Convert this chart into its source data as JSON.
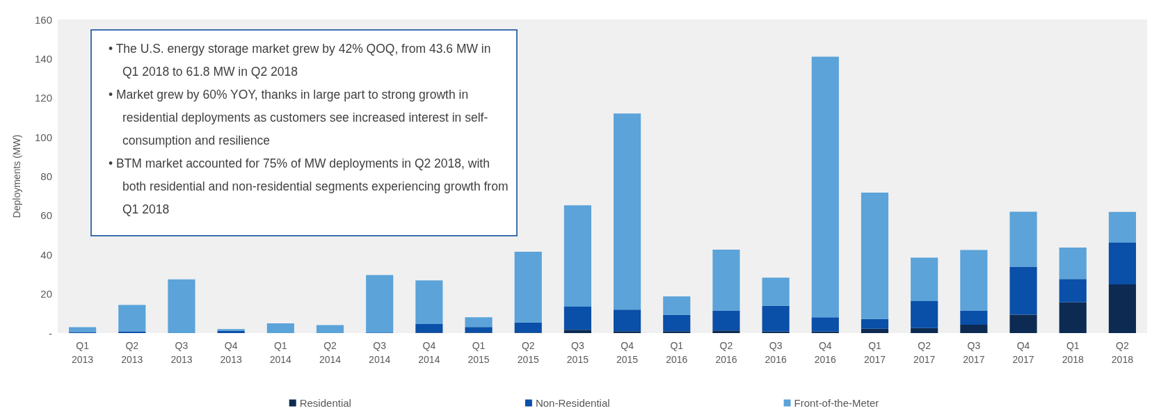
{
  "chart_data": {
    "type": "bar",
    "stacked": true,
    "ylabel": "Deployments (MW)",
    "categories": [
      "Q1\n2013",
      "Q2\n2013",
      "Q3\n2013",
      "Q4\n2013",
      "Q1\n2014",
      "Q2\n2014",
      "Q3\n2014",
      "Q4\n2014",
      "Q1\n2015",
      "Q2\n2015",
      "Q3\n2015",
      "Q4\n2015",
      "Q1\n2016",
      "Q2\n2016",
      "Q3\n2016",
      "Q4\n2016",
      "Q1\n2017",
      "Q2\n2017",
      "Q3\n2017",
      "Q4\n2017",
      "Q1\n2018",
      "Q2\n2018"
    ],
    "series": [
      {
        "name": "Residential",
        "color": "#0d2b52",
        "values": [
          0,
          0,
          0,
          0,
          0,
          0,
          0,
          0.3,
          0.3,
          0.3,
          1.7,
          1,
          1,
          1.3,
          0.8,
          0.8,
          2.2,
          2.6,
          4.3,
          9.4,
          15.7,
          24.8
        ]
      },
      {
        "name": "Non-Residential",
        "color": "#0a4fa8",
        "values": [
          0.5,
          0.9,
          0,
          1.2,
          0,
          0,
          0.3,
          4.3,
          2.8,
          5.1,
          11.8,
          11,
          8.3,
          10.2,
          13.1,
          7.3,
          5,
          13.7,
          7.2,
          24.5,
          11.9,
          21.3
        ]
      },
      {
        "name": "Front-of-the-Meter",
        "color": "#5ba3d9",
        "values": [
          2.5,
          13.5,
          27.4,
          0.8,
          5,
          4.1,
          29.3,
          22.3,
          5,
          36.1,
          51.7,
          100,
          9.4,
          31.1,
          14.4,
          132.9,
          64.5,
          22.2,
          30.9,
          28,
          16,
          15.7
        ]
      }
    ],
    "ylim": [
      0,
      160
    ],
    "yticks": [
      {
        "value": 0,
        "label": "-"
      },
      20,
      40,
      60,
      80,
      100,
      120,
      140,
      160
    ],
    "grid": false,
    "legend": "bottom",
    "annotations": [
      "• The U.S. energy storage market grew by 42% QOQ, from 43.6 MW in Q1 2018 to 61.8 MW in Q2 2018",
      "• Market grew by 60% YOY, thanks in large part to strong growth in residential deployments as customers see increased interest in self-consumption and resilience",
      "• BTM market accounted for 75% of MW deployments in Q2 2018, with both residential and non-residential segments experiencing growth from Q1 2018"
    ]
  }
}
